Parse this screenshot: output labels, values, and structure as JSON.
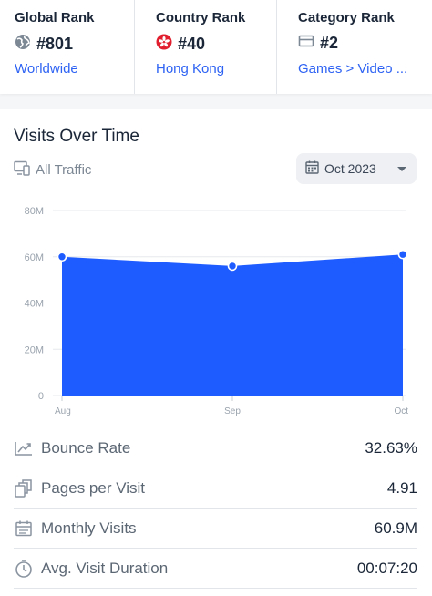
{
  "ranks": [
    {
      "title": "Global Rank",
      "value": "#801",
      "link": "Worldwide",
      "icon": "globe-icon"
    },
    {
      "title": "Country Rank",
      "value": "#40",
      "link": "Hong Kong",
      "icon": "hong-kong-flag-icon"
    },
    {
      "title": "Category Rank",
      "value": "#2",
      "link": "Games > Video ...",
      "icon": "category-icon"
    }
  ],
  "visits": {
    "title": "Visits Over Time",
    "traffic_label": "All Traffic",
    "date_value": "Oct 2023"
  },
  "chart_data": {
    "type": "area",
    "title": "",
    "categories": [
      "Aug",
      "Sep",
      "Oct"
    ],
    "series": [
      {
        "values": [
          60,
          56,
          61
        ]
      }
    ],
    "unit": "M",
    "ylim": [
      0,
      80
    ],
    "yticks": [
      "0",
      "20M",
      "40M",
      "60M",
      "80M"
    ],
    "grid": true,
    "color": "#1f5cff"
  },
  "metrics": [
    {
      "label": "Bounce Rate",
      "value": "32.63%",
      "icon": "bounce-rate-icon"
    },
    {
      "label": "Pages per Visit",
      "value": "4.91",
      "icon": "pages-icon"
    },
    {
      "label": "Monthly Visits",
      "value": "60.9M",
      "icon": "calendar-icon"
    },
    {
      "label": "Avg. Visit Duration",
      "value": "00:07:20",
      "icon": "timer-icon"
    }
  ],
  "colors": {
    "accent": "#2d62f3",
    "area": "#1f5cff"
  }
}
